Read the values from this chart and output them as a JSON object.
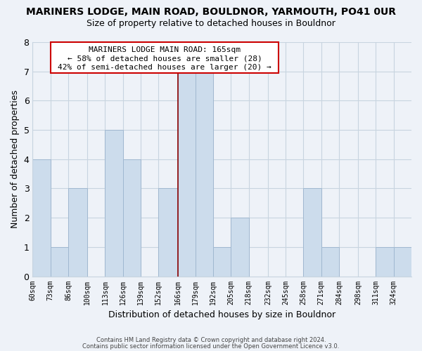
{
  "title": "MARINERS LODGE, MAIN ROAD, BOULDNOR, YARMOUTH, PO41 0UR",
  "subtitle": "Size of property relative to detached houses in Bouldnor",
  "xlabel": "Distribution of detached houses by size in Bouldnor",
  "ylabel": "Number of detached properties",
  "bin_labels": [
    "60sqm",
    "73sqm",
    "86sqm",
    "100sqm",
    "113sqm",
    "126sqm",
    "139sqm",
    "152sqm",
    "166sqm",
    "179sqm",
    "192sqm",
    "205sqm",
    "218sqm",
    "232sqm",
    "245sqm",
    "258sqm",
    "271sqm",
    "284sqm",
    "298sqm",
    "311sqm",
    "324sqm"
  ],
  "bin_edges": [
    60,
    73,
    86,
    100,
    113,
    126,
    139,
    152,
    166,
    179,
    192,
    205,
    218,
    232,
    245,
    258,
    271,
    284,
    298,
    311,
    324
  ],
  "counts": [
    4,
    1,
    3,
    0,
    5,
    4,
    0,
    3,
    7,
    7,
    1,
    2,
    0,
    0,
    0,
    3,
    1,
    0,
    0,
    1,
    1
  ],
  "bar_color": "#ccdcec",
  "bar_edge_color": "#a0b8d0",
  "reference_line_x": 166,
  "reference_line_color": "#8b0000",
  "annotation_box_edgecolor": "#cc0000",
  "annotation_title": "MARINERS LODGE MAIN ROAD: 165sqm",
  "annotation_line1": "← 58% of detached houses are smaller (28)",
  "annotation_line2": "42% of semi-detached houses are larger (20) →",
  "ylim": [
    0,
    8
  ],
  "yticks": [
    0,
    1,
    2,
    3,
    4,
    5,
    6,
    7,
    8
  ],
  "footer1": "Contains HM Land Registry data © Crown copyright and database right 2024.",
  "footer2": "Contains public sector information licensed under the Open Government Licence v3.0.",
  "bg_color": "#eef2f8",
  "plot_bg_color": "#eef2f8",
  "grid_color": "#c8d4e0",
  "title_fontsize": 10,
  "subtitle_fontsize": 9,
  "ylabel_fontsize": 9,
  "xlabel_fontsize": 9
}
